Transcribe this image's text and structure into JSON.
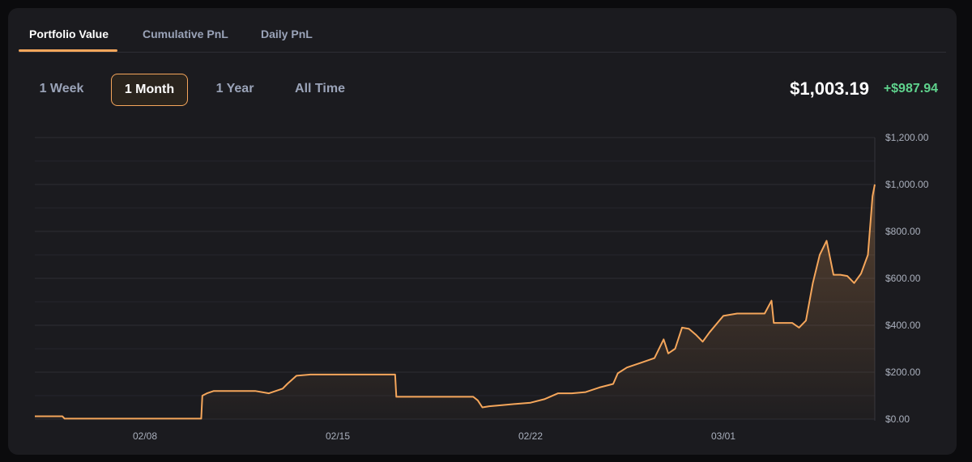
{
  "tabs": [
    {
      "label": "Portfolio Value",
      "active": true
    },
    {
      "label": "Cumulative PnL",
      "active": false
    },
    {
      "label": "Daily PnL",
      "active": false
    }
  ],
  "ranges": [
    {
      "label": "1 Week",
      "active": false
    },
    {
      "label": "1 Month",
      "active": true
    },
    {
      "label": "1 Year",
      "active": false
    },
    {
      "label": "All Time",
      "active": false
    }
  ],
  "summary": {
    "value": "$1,003.19",
    "change": "+$987.94"
  },
  "colors": {
    "accent": "#f5a65b",
    "positive": "#5fd38d",
    "background": "#1b1b1f"
  },
  "chart_data": {
    "type": "area",
    "x_axis": "date",
    "ylim": [
      0,
      1200
    ],
    "ytick_values": [
      0,
      200,
      400,
      600,
      800,
      1000,
      1200
    ],
    "ytick_labels": [
      "$0.00",
      "$200.00",
      "$400.00",
      "$600.00",
      "$800.00",
      "$1,000.00",
      "$1,200.00"
    ],
    "xlim": [
      "02/04",
      "03/06 12:00"
    ],
    "xtick_values": [
      "02/08",
      "02/15",
      "02/22",
      "03/01"
    ],
    "xtick_labels": [
      "02/08",
      "02/15",
      "02/22",
      "03/01"
    ],
    "grid": true,
    "series": [
      {
        "x": [
          "02/04 00:00",
          "02/05 00:00",
          "02/05 02:00",
          "02/05 06:00",
          "02/10 01:00",
          "02/10 02:00",
          "02/10 06:00",
          "02/10 12:00",
          "02/11 00:00",
          "02/11 12:00",
          "02/12 00:00",
          "02/12 12:00",
          "02/13 00:00",
          "02/13 04:00",
          "02/13 12:00",
          "02/14 00:00",
          "02/14 12:00",
          "02/15 00:00",
          "02/17 02:00",
          "02/17 03:00",
          "02/18 00:00",
          "02/19 00:00",
          "02/19 22:00",
          "02/20 02:00",
          "02/20 06:00",
          "02/20 12:00",
          "02/21 00:00",
          "02/21 12:00",
          "02/22 00:00",
          "02/22 12:00",
          "02/23 00:00",
          "02/23 12:00",
          "02/24 00:00",
          "02/24 12:00",
          "02/25 00:00",
          "02/25 04:00",
          "02/25 12:00",
          "02/26 00:00",
          "02/26 12:00",
          "02/26 20:00",
          "02/27 00:00",
          "02/27 06:00",
          "02/27 12:00",
          "02/27 18:00",
          "02/28 00:00",
          "02/28 06:00",
          "02/28 12:00",
          "03/01 00:00",
          "03/01 12:00",
          "03/02 00:00",
          "03/02 12:00",
          "03/02 18:00",
          "03/02 20:00",
          "03/03 00:00",
          "03/03 12:00",
          "03/03 18:00",
          "03/04 00:00",
          "03/04 06:00",
          "03/04 12:00",
          "03/04 18:00",
          "03/05 00:00",
          "03/05 06:00",
          "03/05 12:00",
          "03/05 18:00",
          "03/06 00:00",
          "03/06 06:00",
          "03/06 10:00",
          "03/06 12:00"
        ],
        "y": [
          12,
          12,
          2,
          2,
          2,
          100,
          110,
          120,
          120,
          120,
          120,
          110,
          130,
          150,
          185,
          190,
          190,
          190,
          190,
          95,
          95,
          95,
          95,
          80,
          50,
          55,
          60,
          65,
          70,
          85,
          110,
          110,
          115,
          135,
          150,
          195,
          220,
          240,
          260,
          340,
          280,
          300,
          390,
          385,
          360,
          330,
          370,
          440,
          450,
          450,
          450,
          505,
          410,
          410,
          410,
          390,
          420,
          580,
          700,
          760,
          615,
          615,
          610,
          580,
          620,
          700,
          950,
          1000
        ]
      }
    ]
  }
}
